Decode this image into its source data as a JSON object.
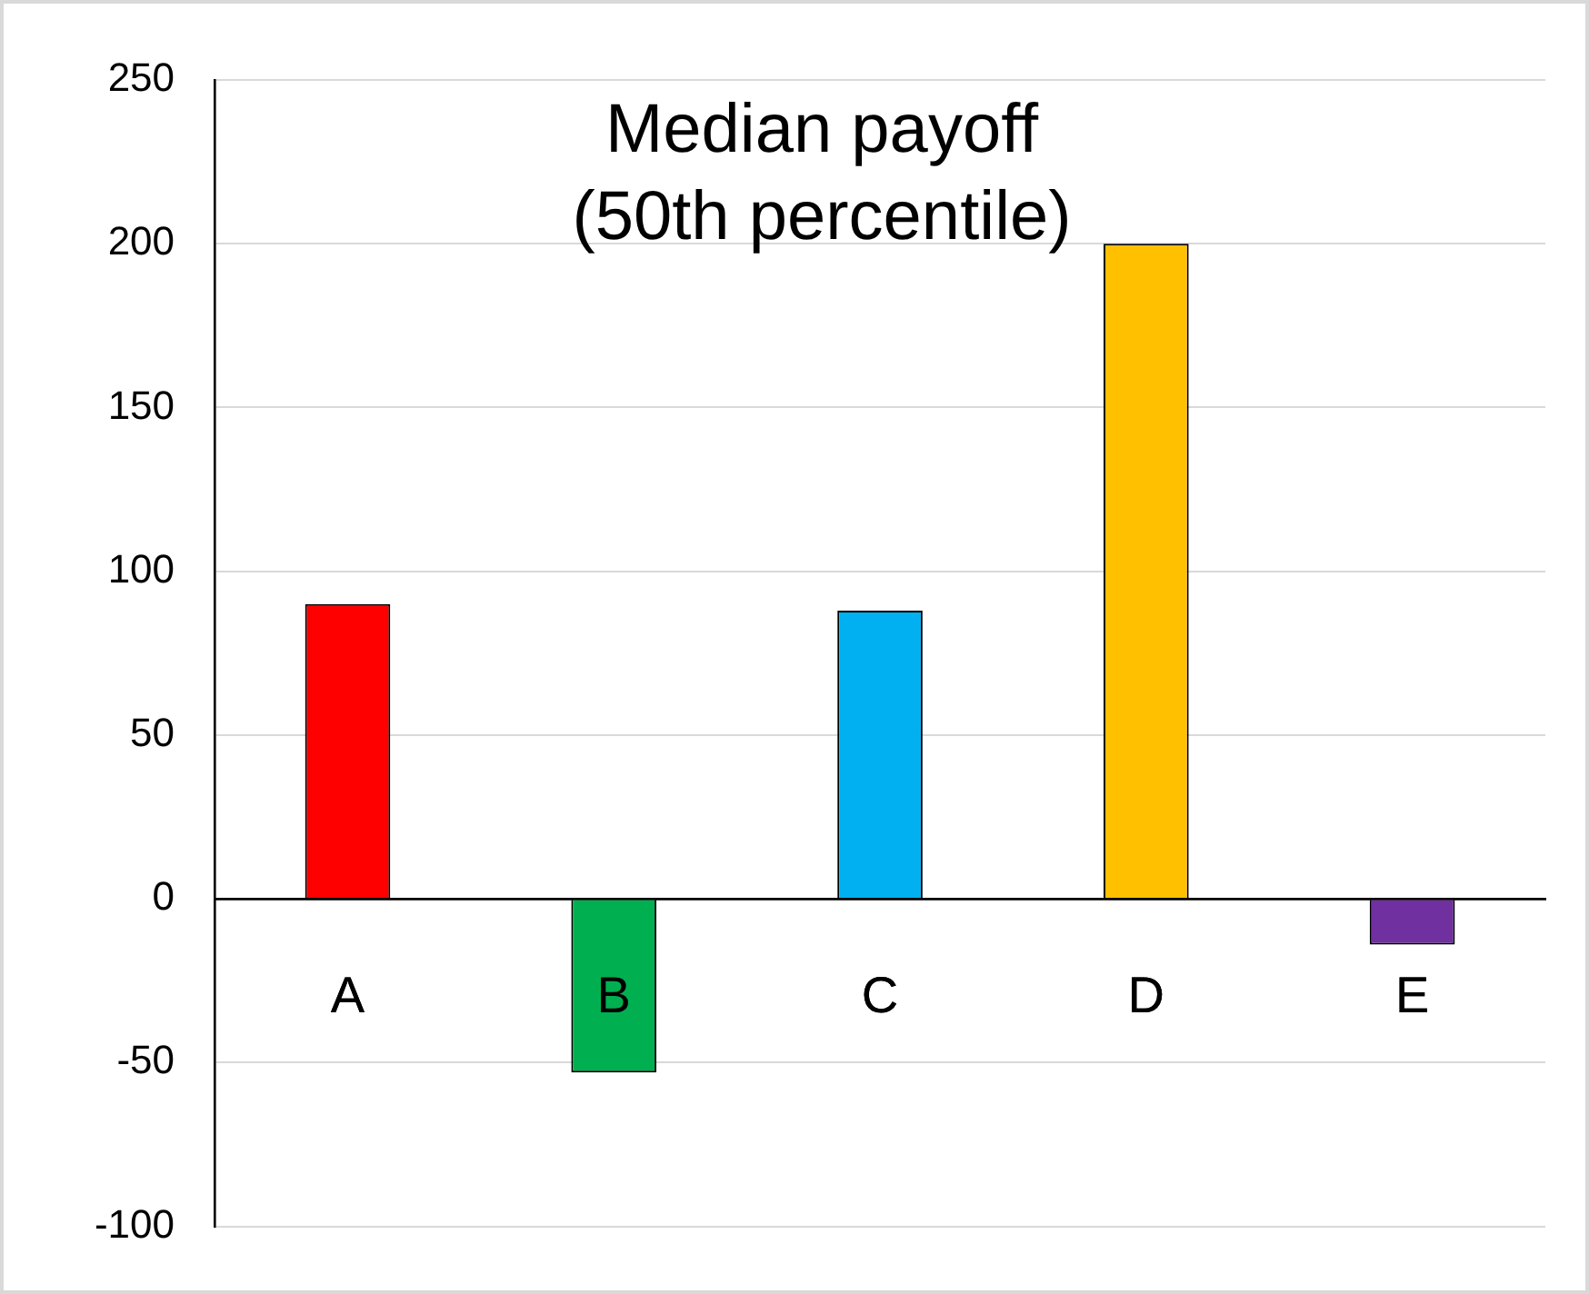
{
  "chart_data": {
    "type": "bar",
    "title": "Median payoff (50th percentile)",
    "categories": [
      "A",
      "B",
      "C",
      "D",
      "E"
    ],
    "values": [
      90,
      -53,
      88,
      200,
      -14
    ],
    "colors": [
      "#ff0000",
      "#00b050",
      "#00b0f0",
      "#ffc000",
      "#7030a0"
    ],
    "ylim": [
      -100,
      250
    ],
    "yticks": [
      -100,
      -50,
      0,
      50,
      100,
      150,
      200,
      250
    ],
    "grid": "y"
  }
}
